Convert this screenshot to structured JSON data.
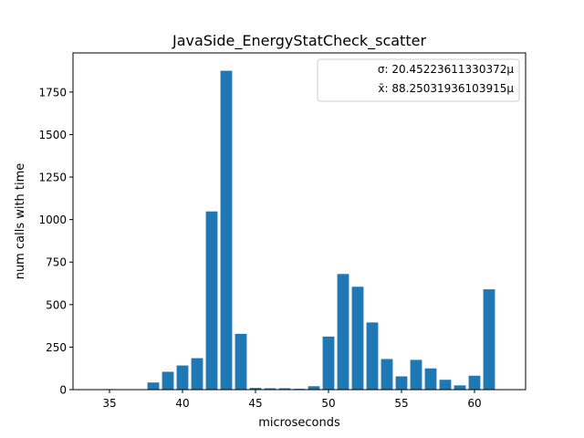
{
  "chart_data": {
    "type": "bar",
    "title": "JavaSide_EnergyStatCheck_scatter",
    "xlabel": "microseconds",
    "ylabel": "num calls with time",
    "xlim": [
      32.5,
      63.5
    ],
    "ylim": [
      0,
      1980
    ],
    "xticks": [
      35,
      40,
      45,
      50,
      55,
      60
    ],
    "yticks": [
      0,
      250,
      500,
      750,
      1000,
      1250,
      1500,
      1750
    ],
    "bar_color": "#1f77b4",
    "grid": false,
    "legend_position": "top-right",
    "legend": [
      "σ: 20.45223611330372µ",
      "x̄: 88.25031936103915µ"
    ],
    "x": [
      35,
      36,
      37,
      38,
      39,
      40,
      41,
      42,
      43,
      44,
      45,
      46,
      47,
      48,
      49,
      50,
      51,
      52,
      53,
      54,
      55,
      56,
      57,
      58,
      59,
      60,
      61
    ],
    "values": [
      3,
      0,
      0,
      42,
      105,
      142,
      185,
      1048,
      1875,
      328,
      10,
      8,
      8,
      5,
      20,
      312,
      680,
      605,
      395,
      180,
      78,
      175,
      125,
      58,
      25,
      82,
      590
    ]
  }
}
